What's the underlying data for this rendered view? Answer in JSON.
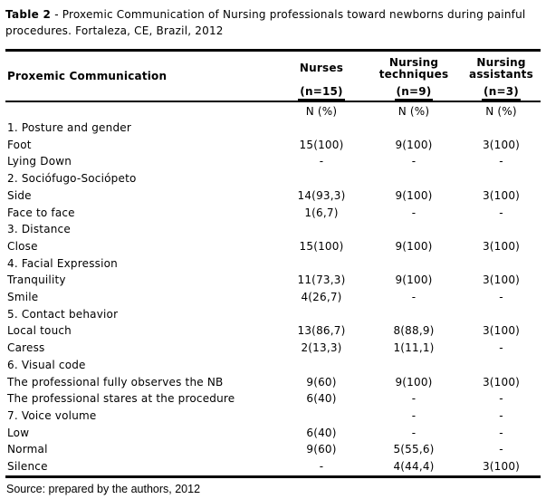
{
  "title": {
    "label": "Table 2",
    "text": "- Proxemic Communication of Nursing professionals toward newborns during painful procedures. Fortaleza, CE, Brazil, 2012"
  },
  "table": {
    "col1_header": "Proxemic Communication",
    "groups": [
      {
        "name": "Nurses",
        "n": "(n=15)"
      },
      {
        "name": "Nursing techniques",
        "n": "(n=9)"
      },
      {
        "name": "Nursing assistants",
        "n": "(n=3)"
      }
    ],
    "n_pct": "N (%)",
    "rows": [
      {
        "label": "1. Posture and gender",
        "nurses": "",
        "techniques": "",
        "assistants": ""
      },
      {
        "label": "Foot",
        "nurses": "15(100)",
        "techniques": "9(100)",
        "assistants": "3(100)"
      },
      {
        "label": "Lying Down",
        "nurses": "-",
        "techniques": "-",
        "assistants": "-"
      },
      {
        "label": "2. Sociófugo-Sociópeto",
        "nurses": "",
        "techniques": "",
        "assistants": ""
      },
      {
        "label": "Side",
        "nurses": "14(93,3)",
        "techniques": "9(100)",
        "assistants": "3(100)"
      },
      {
        "label": "Face to face",
        "nurses": "1(6,7)",
        "techniques": "-",
        "assistants": "-"
      },
      {
        "label": "3. Distance",
        "nurses": "",
        "techniques": "",
        "assistants": ""
      },
      {
        "label": "Close",
        "nurses": "15(100)",
        "techniques": "9(100)",
        "assistants": "3(100)"
      },
      {
        "label": "4. Facial Expression",
        "nurses": "",
        "techniques": "",
        "assistants": ""
      },
      {
        "label": "Tranquility",
        "nurses": "11(73,3)",
        "techniques": "9(100)",
        "assistants": "3(100)"
      },
      {
        "label": "Smile",
        "nurses": "4(26,7)",
        "techniques": "-",
        "assistants": "-"
      },
      {
        "label": "5. Contact behavior",
        "nurses": "",
        "techniques": "",
        "assistants": ""
      },
      {
        "label": "Local touch",
        "nurses": "13(86,7)",
        "techniques": "8(88,9)",
        "assistants": "3(100)"
      },
      {
        "label": "Caress",
        "nurses": "2(13,3)",
        "techniques": "1(11,1)",
        "assistants": "-"
      },
      {
        "label": "6. Visual code",
        "nurses": "",
        "techniques": "",
        "assistants": ""
      },
      {
        "label": "The professional fully observes the NB",
        "nurses": "9(60)",
        "techniques": "9(100)",
        "assistants": "3(100)"
      },
      {
        "label": "The professional stares at the procedure",
        "nurses": "6(40)",
        "techniques": "-",
        "assistants": "-"
      },
      {
        "label": "7. Voice volume",
        "nurses": "",
        "techniques": "-",
        "assistants": "-"
      },
      {
        "label": "Low",
        "nurses": "6(40)",
        "techniques": "-",
        "assistants": "-"
      },
      {
        "label": "Normal",
        "nurses": "9(60)",
        "techniques": "5(55,6)",
        "assistants": "-"
      },
      {
        "label": "Silence",
        "nurses": "-",
        "techniques": "4(44,4)",
        "assistants": "3(100)"
      }
    ]
  },
  "source": "Source: prepared by the authors, 2012",
  "colors": {
    "text": "#000000",
    "background": "#ffffff",
    "rule": "#000000"
  }
}
